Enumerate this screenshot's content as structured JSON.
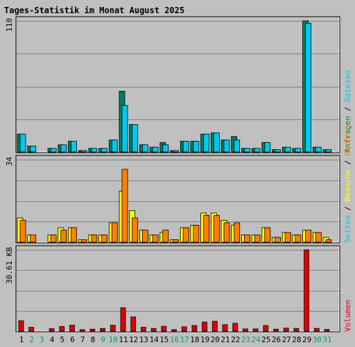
{
  "chart_data": {
    "type": "bar",
    "title": "Tages-Statistik im Monat August 2025",
    "categories": [
      "1",
      "2",
      "3",
      "4",
      "5",
      "6",
      "7",
      "8",
      "9",
      "10",
      "11",
      "12",
      "13",
      "14",
      "15",
      "16",
      "17",
      "18",
      "19",
      "20",
      "21",
      "22",
      "23",
      "24",
      "25",
      "26",
      "27",
      "28",
      "29",
      "30",
      "31"
    ],
    "weekend_days": [
      "2",
      "3",
      "9",
      "10",
      "16",
      "17",
      "23",
      "24",
      "30",
      "31"
    ],
    "colors": {
      "anfragen": "#00805c",
      "dateien": "#00c8f0",
      "seiten": "#00c8f0",
      "besuche": "#ffff00",
      "rechner": "#ff8000",
      "volumen": "#e00000",
      "title": "#0000ff",
      "weekday_label": "#000000",
      "weekend_label": "#00a070",
      "panel_bg": "#c0c0c0",
      "grid": "#808080"
    },
    "panels": [
      {
        "id": "hits",
        "max_label": "110",
        "ymax": 110,
        "series": [
          {
            "name": "Anfragen",
            "key": "anfragen",
            "values": [
              15,
              5,
              0,
              3,
              6,
              9,
              1,
              3,
              3,
              10,
              51,
              23,
              6,
              4,
              8,
              1,
              9,
              9,
              15,
              16,
              10,
              13,
              3,
              3,
              8,
              2,
              4,
              3,
              110,
              4,
              2
            ]
          },
          {
            "name": "Dateien",
            "key": "dateien",
            "values": [
              15,
              5,
              0,
              3,
              6,
              9,
              1,
              3,
              3,
              10,
              39,
              23,
              6,
              4,
              6,
              1,
              9,
              9,
              15,
              16,
              10,
              10,
              3,
              3,
              8,
              2,
              4,
              3,
              108,
              4,
              2
            ]
          }
        ],
        "legend": [
          {
            "text": "Anfragen",
            "key": "anfragen"
          },
          {
            "text": "Dateien",
            "key": "dateien"
          }
        ]
      },
      {
        "id": "visits",
        "max_label": "34",
        "ymax": 34,
        "series": [
          {
            "name": "Besuche",
            "key": "besuche",
            "values": [
              10,
              3,
              0,
              3,
              6,
              6,
              1,
              3,
              3,
              8,
              21,
              13,
              5,
              3,
              4,
              1,
              6,
              7,
              12,
              12,
              9,
              7,
              3,
              3,
              6,
              2,
              4,
              3,
              5,
              4,
              2
            ]
          },
          {
            "name": "Rechner",
            "key": "rechner",
            "values": [
              9,
              3,
              0,
              3,
              5,
              6,
              1,
              3,
              3,
              8,
              30,
              10,
              5,
              3,
              5,
              1,
              6,
              7,
              11,
              11,
              8,
              8,
              3,
              3,
              6,
              2,
              4,
              3,
              5,
              4,
              1
            ]
          }
        ],
        "legend": [
          {
            "text": "Seiten",
            "key": "seiten"
          },
          {
            "text": "Besuche",
            "key": "besuche"
          },
          {
            "text": "Rechner",
            "key": "rechner"
          }
        ]
      },
      {
        "id": "volume",
        "max_label": "30.61 KB",
        "ymax": 30.61,
        "series": [
          {
            "name": "Volumen",
            "key": "volumen",
            "values": [
              3.9,
              1.4,
              0,
              0.9,
              1.7,
              2.2,
              0.4,
              0.7,
              1.0,
              2.2,
              8.8,
              5.3,
              1.4,
              1.0,
              1.8,
              0.4,
              1.6,
              2.1,
              3.4,
              3.7,
              2.4,
              2.9,
              0.8,
              0.8,
              2.1,
              0.7,
              1.1,
              1.0,
              30.61,
              1.0,
              0.6
            ]
          }
        ],
        "legend": [
          {
            "text": "Volumen",
            "key": "volumen"
          }
        ]
      }
    ],
    "legend_separator": " / ",
    "legend_placement": "right, vertical",
    "grid": true
  }
}
